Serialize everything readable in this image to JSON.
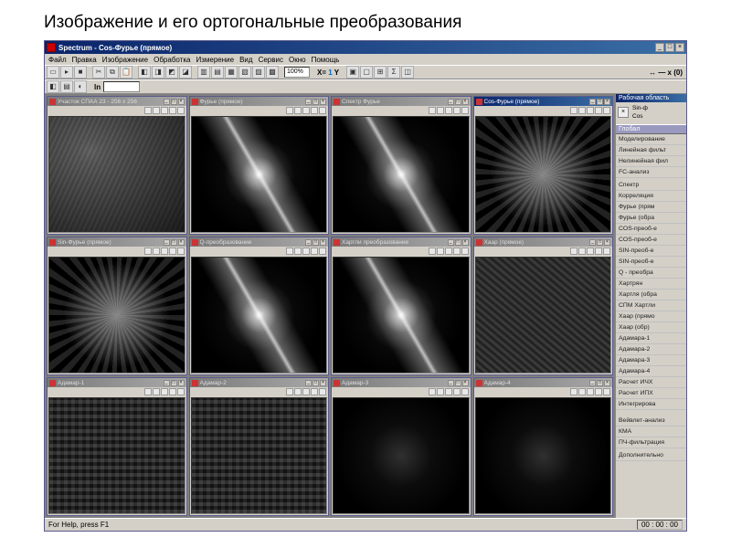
{
  "page": {
    "title": "Изображение и его ортогональные преобразования"
  },
  "app": {
    "title": "Spectrum - Cos-Фурье (прямое)",
    "menu": [
      "Файл",
      "Правка",
      "Изображение",
      "Обработка",
      "Измерение",
      "Вид",
      "Сервис",
      "Окно",
      "Помощь"
    ],
    "zoom_field": "100%",
    "coord_label": "↔ — x (0)"
  },
  "toolbar2": {
    "ln": "ln",
    "field": ""
  },
  "statusbar": {
    "help": "For Help, press F1",
    "time": "00 : 00 : 00"
  },
  "sidebar": {
    "head": "Рабочая область",
    "xy_stub1": "Sin-ф",
    "xy_stub2": "Cos",
    "global_head": "Глобал",
    "groups": [
      {
        "head": null,
        "items": [
          "Моделирование",
          "Линейная фильт",
          "Нелинейная фил",
          "FC-анализ"
        ]
      },
      {
        "head": null,
        "items": [
          "Спектр",
          "Корреляция",
          "Фурье (прям",
          "Фурье (обра",
          "COS-преоб-е",
          "COS-преоб-е",
          "SIN-преоб-е",
          "SIN-преоб-е",
          "Q - преобра",
          "Хартрян",
          "Хартля (обра",
          "СПМ Хартли",
          "Хаар (прямо",
          "Хаар (обр)",
          "Адамара-1",
          "Адамара-2",
          "Адамара-3",
          "Адамара-4",
          "Расчет ИЧХ",
          "Расчет ИПХ",
          "Интегрирова"
        ]
      },
      {
        "head": null,
        "items": [
          "Вейвлет-анализ",
          "КМА",
          "ПЧ-фильтрация"
        ]
      },
      {
        "head": null,
        "items": [
          "Дополнительно"
        ]
      }
    ]
  },
  "panels": [
    {
      "title": "Участок СПАА 23 - 256 х 256",
      "type": "orig",
      "active": false
    },
    {
      "title": "Фурье (прямое)",
      "type": "diag",
      "active": false
    },
    {
      "title": "Спектр Фурье",
      "type": "diag",
      "active": false
    },
    {
      "title": "Cos-Фурье (прямое)",
      "type": "noise",
      "active": true
    },
    {
      "title": "Sin-Фурье (прямое)",
      "type": "noise",
      "active": false
    },
    {
      "title": "Q-преобразование",
      "type": "diag",
      "active": false
    },
    {
      "title": "Хартли преобразование",
      "type": "diag",
      "active": false
    },
    {
      "title": "Хаар (прямое)",
      "type": "haar",
      "active": false
    },
    {
      "title": "Адамар-1",
      "type": "adamar",
      "active": false
    },
    {
      "title": "Адамар-2",
      "type": "adamar",
      "active": false
    },
    {
      "title": "Адамар-3",
      "type": "dark",
      "active": false
    },
    {
      "title": "Адамар-4",
      "type": "dark",
      "active": false
    }
  ],
  "colors": {
    "titlebar_start": "#0a246a",
    "titlebar_end": "#3a6ea5",
    "chrome": "#d4d0c8",
    "workspace_bg": "#808080"
  }
}
